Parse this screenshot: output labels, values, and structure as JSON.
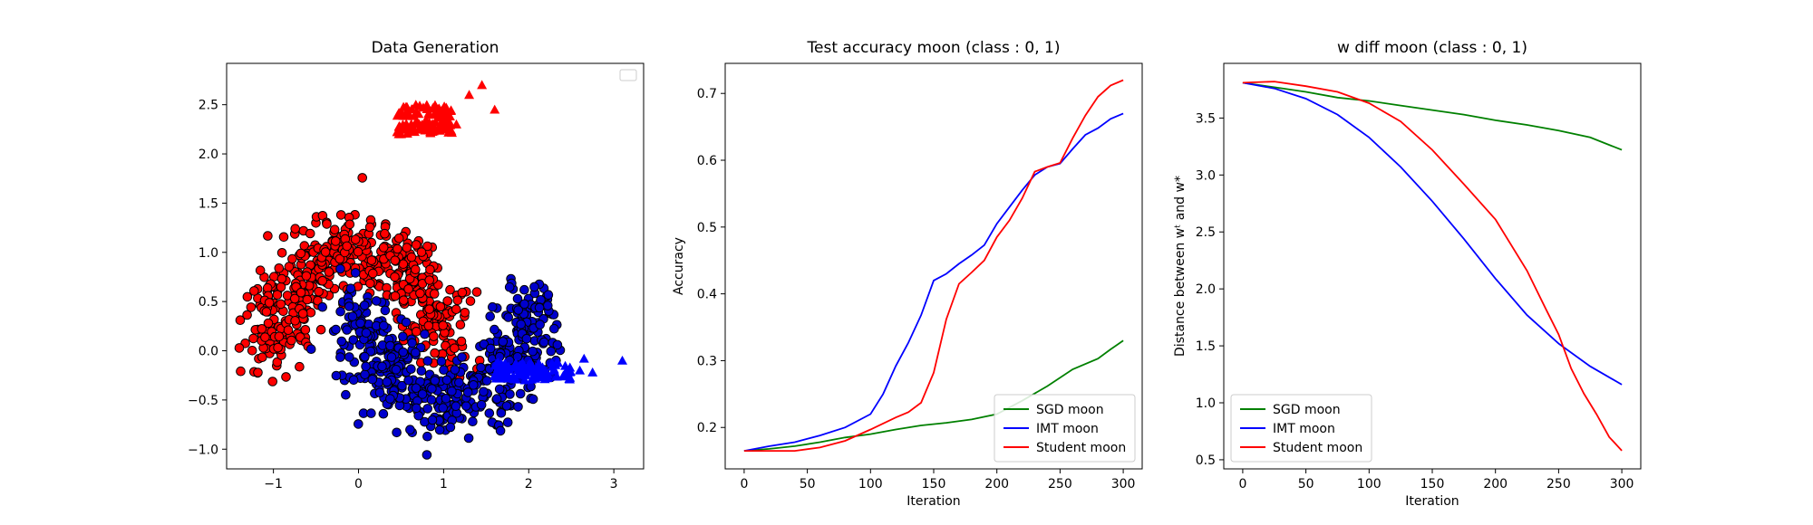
{
  "chart_data": [
    {
      "type": "scatter",
      "title": "Data Generation",
      "xlabel": "",
      "ylabel": "",
      "xlim": [
        -1.55,
        3.35
      ],
      "ylim": [
        -1.2,
        2.92
      ],
      "xticks": [
        -1,
        0,
        1,
        2,
        3
      ],
      "yticks": [
        -1.0,
        -0.5,
        0.0,
        0.5,
        1.0,
        1.5,
        2.0,
        2.5
      ],
      "xtick_labels": [
        "−1",
        "0",
        "1",
        "2",
        "3"
      ],
      "ytick_labels": [
        "−1.0",
        "−0.5",
        "0.0",
        "0.5",
        "1.0",
        "1.5",
        "2.0",
        "2.5"
      ],
      "legend": {
        "placement": "top-right",
        "entries": []
      },
      "series": [
        {
          "kind": "circles",
          "color": "#ff0000",
          "edge": "#000000",
          "count": 520,
          "shape": "upper-moon",
          "center": [
            0,
            0
          ],
          "radius": 1.0,
          "noise": 0.2
        },
        {
          "kind": "circles",
          "color": "#0000cc",
          "edge": "#000000",
          "count": 520,
          "shape": "lower-moon",
          "center": [
            1,
            0.5
          ],
          "radius": 1.0,
          "noise": 0.2
        },
        {
          "kind": "triangles",
          "color": "#ff0000",
          "count": 110,
          "region": {
            "x": [
              0.45,
              1.1
            ],
            "y": [
              2.2,
              2.5
            ]
          },
          "outliers": [
            [
              1.45,
              2.7
            ],
            [
              1.6,
              2.45
            ],
            [
              1.3,
              2.6
            ],
            [
              1.15,
              2.3
            ]
          ]
        },
        {
          "kind": "triangles",
          "color": "#0000ff",
          "count": 110,
          "region": {
            "x": [
              1.6,
              2.5
            ],
            "y": [
              -0.3,
              -0.12
            ]
          },
          "outliers": [
            [
              2.6,
              -0.2
            ],
            [
              2.75,
              -0.22
            ],
            [
              2.65,
              -0.08
            ],
            [
              3.1,
              -0.1
            ]
          ]
        }
      ]
    },
    {
      "type": "line",
      "title": "Test accuracy moon (class : 0, 1)",
      "xlabel": "Iteration",
      "ylabel": "Accuracy",
      "xlim": [
        -15,
        315
      ],
      "ylim": [
        0.138,
        0.745
      ],
      "xticks": [
        0,
        50,
        100,
        150,
        200,
        250,
        300
      ],
      "yticks": [
        0.2,
        0.3,
        0.4,
        0.5,
        0.6,
        0.7
      ],
      "xtick_labels": [
        "0",
        "50",
        "100",
        "150",
        "200",
        "250",
        "300"
      ],
      "ytick_labels": [
        "0.2",
        "0.3",
        "0.4",
        "0.5",
        "0.6",
        "0.7"
      ],
      "legend": {
        "placement": "bottom-right"
      },
      "series": [
        {
          "name": "SGD moon",
          "color": "#008000",
          "x": [
            0,
            20,
            40,
            60,
            80,
            100,
            120,
            140,
            160,
            180,
            200,
            220,
            240,
            260,
            280,
            290,
            300
          ],
          "y": [
            0.165,
            0.168,
            0.172,
            0.178,
            0.185,
            0.19,
            0.197,
            0.203,
            0.207,
            0.212,
            0.22,
            0.24,
            0.262,
            0.287,
            0.303,
            0.317,
            0.33
          ]
        },
        {
          "name": "IMT moon",
          "color": "#0000ff",
          "x": [
            0,
            20,
            40,
            60,
            80,
            100,
            110,
            120,
            130,
            140,
            150,
            160,
            170,
            180,
            190,
            200,
            210,
            220,
            230,
            240,
            250,
            260,
            270,
            280,
            290,
            300
          ],
          "y": [
            0.165,
            0.172,
            0.178,
            0.188,
            0.2,
            0.22,
            0.25,
            0.292,
            0.327,
            0.368,
            0.42,
            0.43,
            0.445,
            0.458,
            0.473,
            0.505,
            0.53,
            0.555,
            0.578,
            0.59,
            0.595,
            0.617,
            0.638,
            0.648,
            0.662,
            0.67
          ]
        },
        {
          "name": "Student moon",
          "color": "#ff0000",
          "x": [
            0,
            20,
            40,
            60,
            80,
            100,
            120,
            130,
            140,
            150,
            160,
            170,
            180,
            190,
            200,
            210,
            220,
            230,
            240,
            250,
            260,
            270,
            280,
            290,
            300
          ],
          "y": [
            0.165,
            0.165,
            0.165,
            0.17,
            0.18,
            0.197,
            0.215,
            0.223,
            0.237,
            0.282,
            0.362,
            0.415,
            0.432,
            0.45,
            0.485,
            0.51,
            0.543,
            0.583,
            0.59,
            0.596,
            0.633,
            0.667,
            0.695,
            0.712,
            0.72
          ]
        }
      ]
    },
    {
      "type": "line",
      "title": "w diff moon (class : 0, 1)",
      "xlabel": "Iteration",
      "ylabel": "Distance between wᵗ and w*",
      "xlim": [
        -15,
        315
      ],
      "ylim": [
        0.42,
        3.98
      ],
      "xticks": [
        0,
        50,
        100,
        150,
        200,
        250,
        300
      ],
      "yticks": [
        0.5,
        1.0,
        1.5,
        2.0,
        2.5,
        3.0,
        3.5
      ],
      "xtick_labels": [
        "0",
        "50",
        "100",
        "150",
        "200",
        "250",
        "300"
      ],
      "ytick_labels": [
        "0.5",
        "1.0",
        "1.5",
        "2.0",
        "2.5",
        "3.0",
        "3.5"
      ],
      "legend": {
        "placement": "bottom-left"
      },
      "series": [
        {
          "name": "SGD moon",
          "color": "#008000",
          "x": [
            0,
            25,
            50,
            75,
            100,
            125,
            150,
            175,
            200,
            225,
            250,
            275,
            300
          ],
          "y": [
            3.81,
            3.77,
            3.73,
            3.68,
            3.65,
            3.61,
            3.57,
            3.53,
            3.48,
            3.44,
            3.39,
            3.33,
            3.22
          ]
        },
        {
          "name": "IMT moon",
          "color": "#0000ff",
          "x": [
            0,
            25,
            50,
            75,
            100,
            125,
            150,
            175,
            200,
            225,
            250,
            275,
            300
          ],
          "y": [
            3.81,
            3.76,
            3.67,
            3.53,
            3.33,
            3.07,
            2.77,
            2.44,
            2.09,
            1.77,
            1.52,
            1.32,
            1.16
          ]
        },
        {
          "name": "Student moon",
          "color": "#ff0000",
          "x": [
            0,
            25,
            50,
            75,
            100,
            125,
            150,
            175,
            200,
            225,
            240,
            250,
            260,
            270,
            280,
            290,
            300
          ],
          "y": [
            3.81,
            3.82,
            3.78,
            3.73,
            3.63,
            3.47,
            3.22,
            2.92,
            2.61,
            2.16,
            1.82,
            1.6,
            1.3,
            1.08,
            0.9,
            0.7,
            0.58
          ]
        }
      ]
    }
  ]
}
